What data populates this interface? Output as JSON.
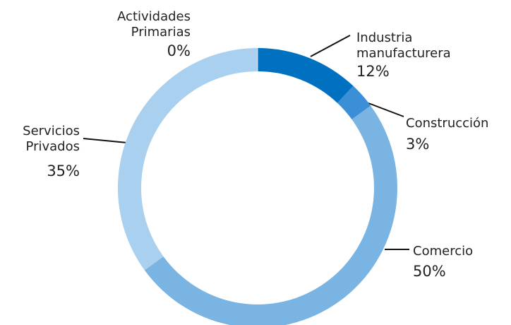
{
  "chart_data": {
    "type": "pie",
    "categories": [
      "Industria manufacturera",
      "Construcción",
      "Comercio",
      "Servicios Privados",
      "Actividades Primarias"
    ],
    "values": [
      12,
      3,
      50,
      35,
      0
    ],
    "value_labels": [
      "12%",
      "3%",
      "50%",
      "35%",
      "0%"
    ],
    "colors": [
      "#0070c0",
      "#3a8fd6",
      "#79b4e3",
      "#aad0ef",
      "#d9e9f7"
    ]
  }
}
